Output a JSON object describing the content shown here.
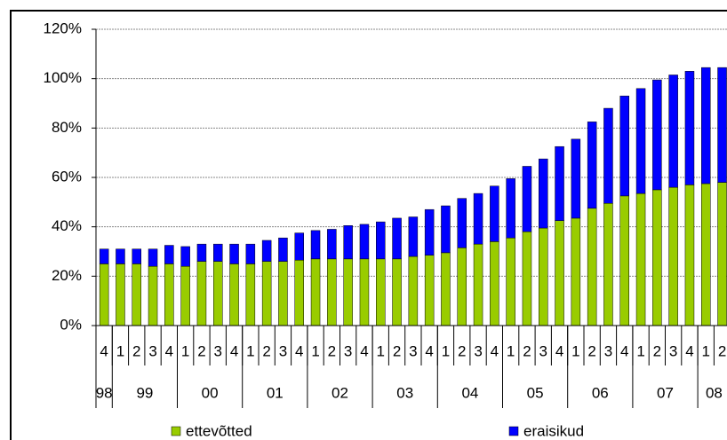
{
  "chart_data": {
    "type": "stacked_bar",
    "categories": [
      "4",
      "1",
      "2",
      "3",
      "4",
      "1",
      "2",
      "3",
      "4",
      "1",
      "2",
      "3",
      "4",
      "1",
      "2",
      "3",
      "4",
      "1",
      "2",
      "3",
      "4",
      "1",
      "2",
      "3",
      "4",
      "1",
      "2",
      "3",
      "4",
      "1",
      "2",
      "3",
      "4",
      "1",
      "2",
      "3",
      "4",
      "1",
      "2"
    ],
    "groups": [
      {
        "label": "98",
        "categories": 1
      },
      {
        "label": "99",
        "categories": 4
      },
      {
        "label": "00",
        "categories": 4
      },
      {
        "label": "01",
        "categories": 4
      },
      {
        "label": "02",
        "categories": 4
      },
      {
        "label": "03",
        "categories": 4
      },
      {
        "label": "04",
        "categories": 4
      },
      {
        "label": "05",
        "categories": 4
      },
      {
        "label": "06",
        "categories": 4
      },
      {
        "label": "07",
        "categories": 4
      },
      {
        "label": "08",
        "categories": 2
      }
    ],
    "series": [
      {
        "name": "ettevõtted",
        "color": "#99cc00",
        "values": [
          25,
          25,
          25,
          24,
          25,
          24,
          26,
          26,
          25,
          25,
          26,
          26,
          26.5,
          27,
          27,
          27,
          27,
          27,
          27,
          28,
          28.5,
          29.5,
          31.5,
          33,
          34,
          35.5,
          38,
          39.5,
          42.5,
          43.5,
          47.5,
          49.5,
          52.5,
          53.5,
          55,
          56,
          57,
          57.5,
          58
        ]
      },
      {
        "name": "eraisikud",
        "color": "#0000ff",
        "values": [
          6,
          6,
          6,
          7,
          7.5,
          8,
          7,
          7,
          8,
          8,
          8.5,
          9.5,
          11,
          11.5,
          12,
          13.5,
          14,
          15,
          16.5,
          16,
          18.5,
          19,
          20,
          20.5,
          22.5,
          24,
          26.5,
          28,
          30,
          32,
          35,
          38.5,
          40.5,
          42.5,
          44.5,
          45.5,
          46,
          47,
          46.5
        ]
      }
    ],
    "ylim": [
      0,
      120
    ],
    "yticks": [
      {
        "value": 0,
        "label": "0%"
      },
      {
        "value": 20,
        "label": "20%"
      },
      {
        "value": 40,
        "label": "40%"
      },
      {
        "value": 60,
        "label": "60%"
      },
      {
        "value": 80,
        "label": "80%"
      },
      {
        "value": 100,
        "label": "100%"
      },
      {
        "value": 120,
        "label": "120%"
      }
    ],
    "grid": true,
    "legend": "bottom"
  }
}
